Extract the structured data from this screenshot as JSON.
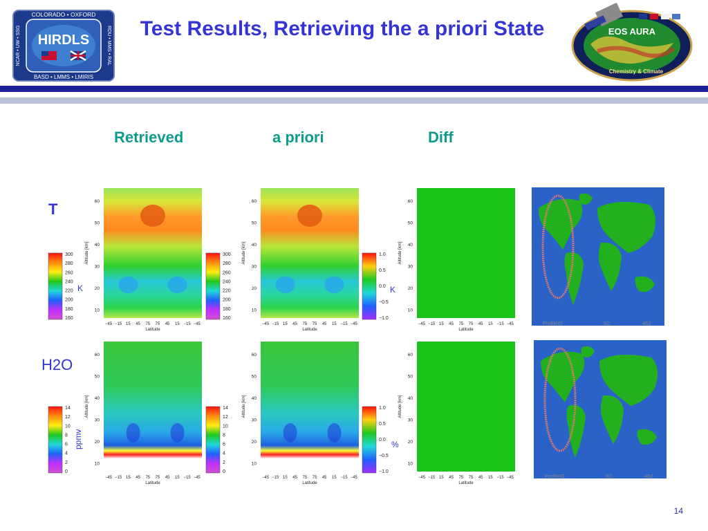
{
  "slide": {
    "title": "Test Results, Retrieving the a priori State",
    "page_number": "14"
  },
  "logos": {
    "left": {
      "name": "HIRDLS",
      "ring_text": "COLORADO • OXFORD",
      "bottom_text": "BASD • LMMS • LMIRIS",
      "left_text": "NCAR • UW • SSG",
      "right_text": "RDU • MMS • RAL"
    },
    "right": {
      "name": "EOS AURA",
      "subtitle": "Chemistry & Climate"
    }
  },
  "columns": [
    "Retrieved",
    "a priori",
    "Diff"
  ],
  "rows": [
    "T",
    "H2O"
  ],
  "panel_axes": {
    "ylabel": "Altitude [km]",
    "yticks": [
      "60",
      "50",
      "40",
      "30",
      "20",
      "10"
    ],
    "xlabel": "Latitude",
    "xticks": [
      "−45",
      "−15",
      "15",
      "45",
      "75",
      "75",
      "45",
      "15",
      "−15",
      "−45"
    ]
  },
  "colorbars": {
    "temperature": {
      "ticks": [
        "300",
        "280",
        "260",
        "240",
        "220",
        "200",
        "180",
        "160"
      ],
      "unit": "K"
    },
    "temperature_diff": {
      "ticks": [
        "1.0",
        "0.5",
        "0.0",
        "−0.5",
        "−1.0"
      ],
      "unit": "K"
    },
    "h2o": {
      "ticks": [
        "14",
        "12",
        "10",
        "8",
        "6",
        "4",
        "2",
        "0"
      ],
      "unit": "ppmv"
    },
    "h2o_diff": {
      "ticks": [
        "1.0",
        "0.5",
        "0.0",
        "−0.5",
        "−1.0"
      ],
      "unit": "%"
    }
  },
  "maps": {
    "top": {
      "label": "ProfileID",
      "value1": "82:",
      "value2": "462"
    },
    "bottom": {
      "label": "ProfileID",
      "value1": "82:",
      "value2": "462"
    }
  },
  "colors": {
    "title": "#3535d6",
    "column_header": "#0f9a8e",
    "bar_dark": "#1f1f9c",
    "bar_light": "#b9bfd4",
    "diff_fill": "#18c418",
    "ocean": "#2b62c8",
    "land": "#23b01f"
  }
}
